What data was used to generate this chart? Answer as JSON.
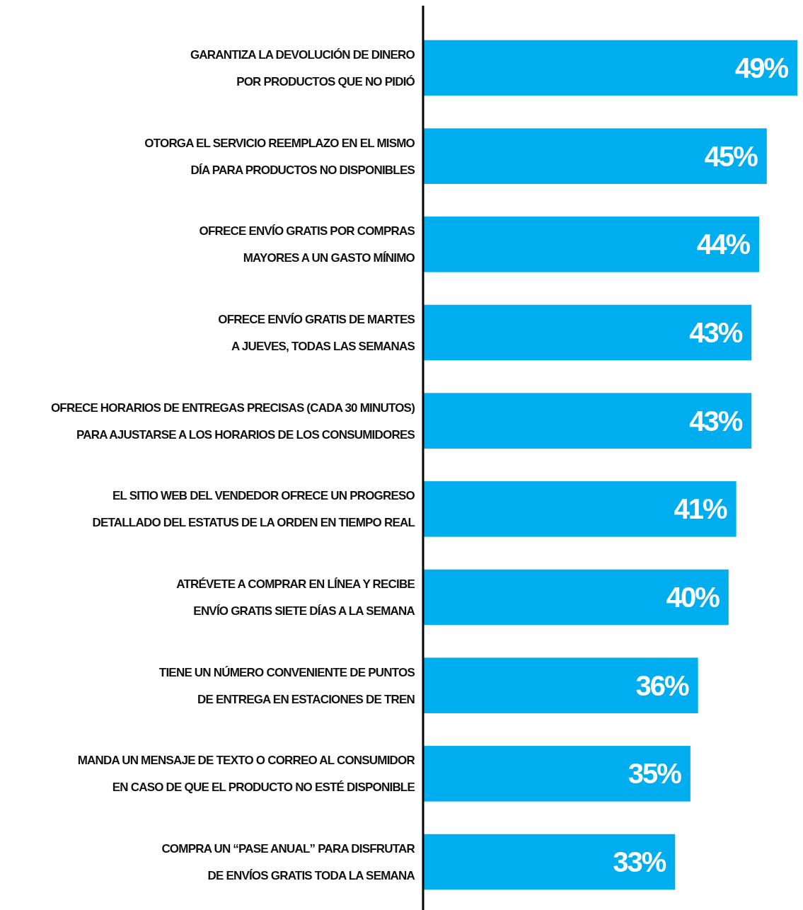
{
  "chart_data": {
    "type": "bar",
    "orientation": "horizontal",
    "categories": [
      "GARANTIZA LA DEVOLUCIÓN DE DINERO\nPOR PRODUCTOS QUE NO PIDIÓ",
      "OTORGA EL SERVICIO REEMPLAZO EN EL MISMO\nDÍA PARA PRODUCTOS NO DISPONIBLES",
      "OFRECE ENVÍO GRATIS POR COMPRAS\nMAYORES A UN GASTO MÍNIMO",
      "OFRECE ENVÍO GRATIS DE MARTES\nA JUEVES, TODAS LAS SEMANAS",
      "OFRECE HORARIOS DE ENTREGAS PRECISAS (CADA 30 MINUTOS)\nPARA AJUSTARSE A LOS HORARIOS DE LOS CONSUMIDORES",
      "EL SITIO WEB DEL VENDEDOR OFRECE UN PROGRESO\nDETALLADO DEL ESTATUS DE LA ORDEN EN TIEMPO REAL",
      "ATRÉVETE A COMPRAR EN LÍNEA Y RECIBE\nENVÍO GRATIS SIETE DÍAS A LA SEMANA",
      "TIENE UN NÚMERO CONVENIENTE DE PUNTOS\nDE ENTREGA EN ESTACIONES DE TREN",
      "MANDA UN MENSAJE DE TEXTO O CORREO AL CONSUMIDOR\nEN CASO DE QUE EL PRODUCTO NO ESTÉ DISPONIBLE",
      "COMPRA UN “PASE ANUAL” PARA DISFRUTAR\nDE ENVÍOS GRATIS TODA LA SEMANA"
    ],
    "values": [
      49,
      45,
      44,
      43,
      43,
      41,
      40,
      36,
      35,
      33
    ],
    "value_labels": [
      "49%",
      "45%",
      "44%",
      "43%",
      "43%",
      "41%",
      "40%",
      "36%",
      "35%",
      "33%"
    ],
    "color": "#00aeef"
  }
}
